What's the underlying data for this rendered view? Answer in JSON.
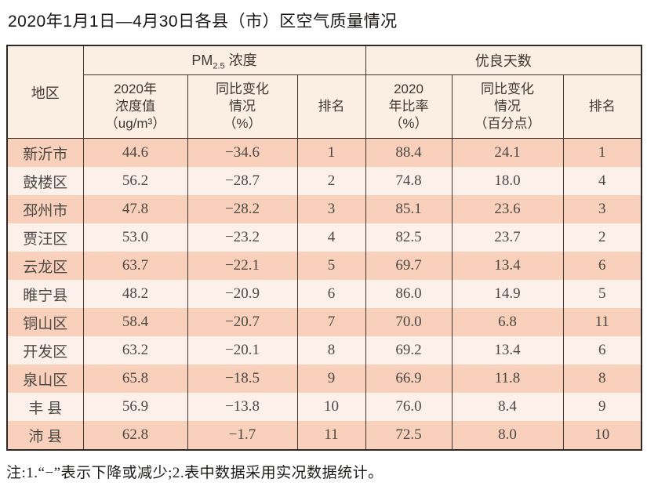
{
  "page": {
    "title": "2020年1月1日—4月30日各县（市）区空气质量情况",
    "footnote": "注:1.“−”表示下降或减少;2.表中数据采用实况数据统计。"
  },
  "colors": {
    "row_odd_bg": "#f8d0bc",
    "row_even_bg": "#fbf1ea",
    "header_bg": "#fbefe4",
    "grid_border": "#3f352d",
    "outer_border": "#2e2925",
    "text": "#4e4843"
  },
  "table": {
    "corner_header": "地区",
    "group_headers": {
      "pm25_prefix": "PM",
      "pm25_sub": "2.5",
      "pm25_suffix": " 浓度",
      "good_days": "优良天数"
    },
    "sub_headers": [
      "2020年\n浓度值\n（ug/m³）",
      "同比变化\n情况\n（%）",
      "排名",
      "2020\n年比率\n（%）",
      "同比变化\n情况\n（百分点）",
      "排名"
    ],
    "rows": [
      [
        "新沂市",
        "44.6",
        "−34.6",
        "1",
        "88.4",
        "24.1",
        "1"
      ],
      [
        "鼓楼区",
        "56.2",
        "−28.7",
        "2",
        "74.8",
        "18.0",
        "4"
      ],
      [
        "邳州市",
        "47.8",
        "−28.2",
        "3",
        "85.1",
        "23.6",
        "3"
      ],
      [
        "贾汪区",
        "53.0",
        "−23.2",
        "4",
        "82.5",
        "23.7",
        "2"
      ],
      [
        "云龙区",
        "63.7",
        "−22.1",
        "5",
        "69.7",
        "13.4",
        "6"
      ],
      [
        "睢宁县",
        "48.2",
        "−20.9",
        "6",
        "86.0",
        "14.9",
        "5"
      ],
      [
        "铜山区",
        "58.4",
        "−20.7",
        "7",
        "70.0",
        "6.8",
        "11"
      ],
      [
        "开发区",
        "63.2",
        "−20.1",
        "8",
        "69.2",
        "13.4",
        "6"
      ],
      [
        "泉山区",
        "65.8",
        "−18.5",
        "9",
        "66.9",
        "11.8",
        "8"
      ],
      [
        "丰 县",
        "56.9",
        "−13.8",
        "10",
        "76.0",
        "8.4",
        "9"
      ],
      [
        "沛 县",
        "62.8",
        "−1.7",
        "11",
        "72.5",
        "8.0",
        "10"
      ]
    ]
  }
}
